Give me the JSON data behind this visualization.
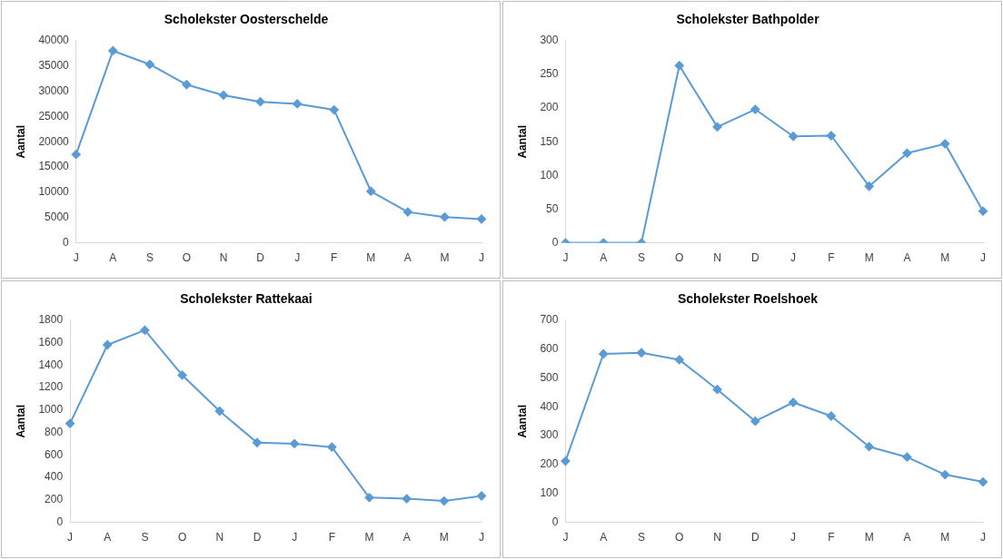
{
  "chart_data": [
    {
      "type": "line",
      "title": "Scholekster Oosterschelde",
      "ylabel": "Aantal",
      "categories": [
        "J",
        "A",
        "S",
        "O",
        "N",
        "D",
        "J",
        "F",
        "M",
        "A",
        "M",
        "J"
      ],
      "series": [
        {
          "color": "#5b9bd5",
          "values": [
            17500,
            38000,
            35300,
            31300,
            29200,
            27900,
            27500,
            26300,
            10200,
            6100,
            5100,
            4700
          ]
        }
      ],
      "ylim": [
        0,
        40000
      ],
      "yticks": [
        0,
        5000,
        10000,
        15000,
        20000,
        25000,
        30000,
        35000,
        40000
      ],
      "grid": false,
      "legend": false,
      "marker": "diamond",
      "line_style": "solid"
    },
    {
      "type": "line",
      "title": "Scholekster Bathpolder",
      "ylabel": "Aantal",
      "categories": [
        "J",
        "A",
        "S",
        "O",
        "N",
        "D",
        "J",
        "F",
        "M",
        "A",
        "M",
        "J"
      ],
      "series": [
        {
          "color": "#5b9bd5",
          "values": [
            0,
            0,
            0,
            263,
            172,
            198,
            158,
            159,
            84,
            133,
            147,
            47
          ]
        }
      ],
      "ylim": [
        0,
        300
      ],
      "yticks": [
        0,
        50,
        100,
        150,
        200,
        250,
        300
      ],
      "grid": false,
      "legend": false,
      "marker": "diamond",
      "line_style": "solid"
    },
    {
      "type": "line",
      "title": "Scholekster Rattekaai",
      "ylabel": "Aantal",
      "categories": [
        "J",
        "A",
        "S",
        "O",
        "N",
        "D",
        "J",
        "F",
        "M",
        "A",
        "M",
        "J"
      ],
      "series": [
        {
          "color": "#5b9bd5",
          "values": [
            880,
            1580,
            1710,
            1310,
            990,
            710,
            700,
            670,
            220,
            210,
            190,
            235
          ]
        }
      ],
      "ylim": [
        0,
        1800
      ],
      "yticks": [
        0,
        200,
        400,
        600,
        800,
        1000,
        1200,
        1400,
        1600,
        1800
      ],
      "grid": false,
      "legend": false,
      "marker": "diamond",
      "line_style": "solid"
    },
    {
      "type": "line",
      "title": "Scholekster Roelshoek",
      "ylabel": "Aantal",
      "categories": [
        "J",
        "A",
        "S",
        "O",
        "N",
        "D",
        "J",
        "F",
        "M",
        "A",
        "M",
        "J"
      ],
      "series": [
        {
          "color": "#5b9bd5",
          "values": [
            212,
            583,
            587,
            563,
            460,
            350,
            415,
            368,
            262,
            226,
            165,
            140
          ]
        }
      ],
      "ylim": [
        0,
        700
      ],
      "yticks": [
        0,
        100,
        200,
        300,
        400,
        500,
        600,
        700
      ],
      "grid": false,
      "legend": false,
      "marker": "diamond",
      "line_style": "solid"
    }
  ]
}
